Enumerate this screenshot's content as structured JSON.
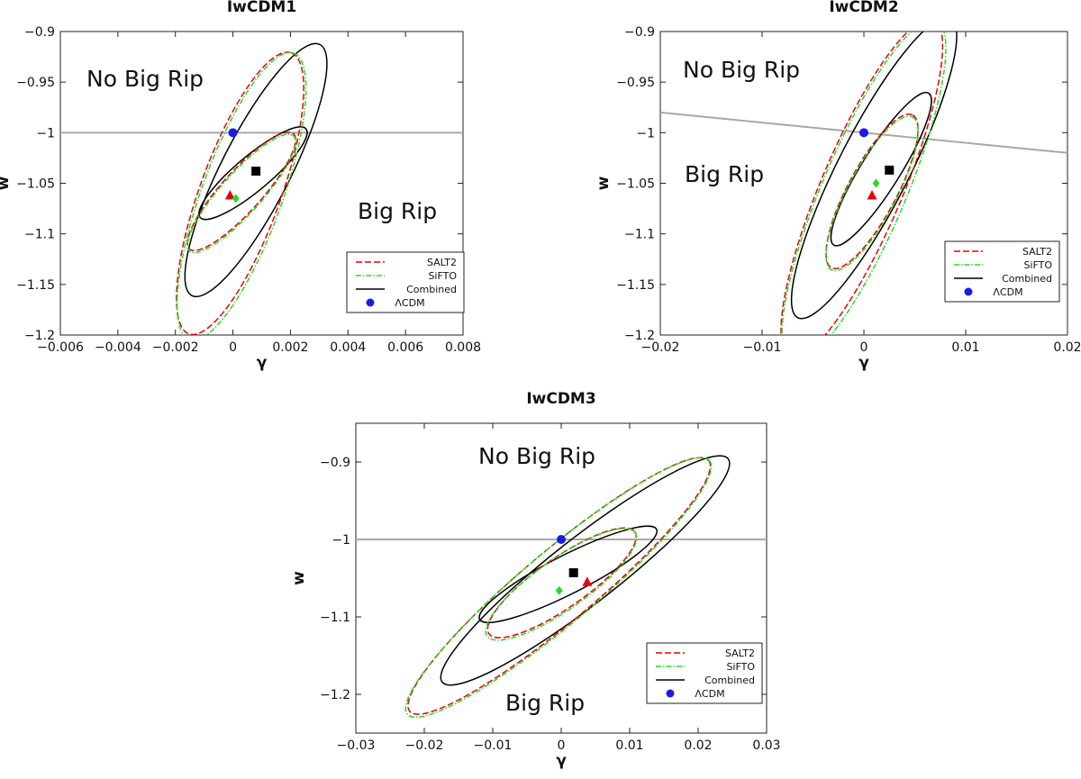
{
  "colors": {
    "salt2": "#e8000b",
    "sifto": "#22dd22",
    "combined": "#000000",
    "lcdm": "#1c1ce0",
    "refline": "#a8a8a8"
  },
  "chart_data": [
    {
      "type": "scatter",
      "id": "p1",
      "title": "IwCDM1",
      "xlabel": "γ",
      "ylabel": "w",
      "xlim": [
        -0.006,
        0.008
      ],
      "ylim": [
        -1.2,
        -0.9
      ],
      "xticks": [
        -0.006,
        -0.004,
        -0.002,
        0,
        0.002,
        0.004,
        0.006,
        0.008
      ],
      "xtick_labels": [
        "−0.006",
        "−0.004",
        "−0.002",
        "0",
        "0.002",
        "0.004",
        "0.006",
        "0.008"
      ],
      "yticks": [
        -1.2,
        -1.15,
        -1.1,
        -1.05,
        -1,
        -0.95,
        -0.9
      ],
      "ytick_labels": [
        "−1.2",
        "−1.15",
        "−1.1",
        "−1.05",
        "−1",
        "−0.95",
        "−0.9"
      ],
      "regions": [
        "No Big Rip",
        "Big Rip"
      ],
      "reference_line": {
        "points": [
          [
            -0.006,
            -1.0
          ],
          [
            0.008,
            -1.0
          ]
        ]
      },
      "contours": [
        {
          "series": "Combined",
          "level": "outer",
          "center": [
            0.0008,
            -1.037
          ],
          "a": 0.0049,
          "b": 0.0012,
          "angle": 63
        },
        {
          "series": "Combined",
          "level": "inner",
          "center": [
            0.0007,
            -1.04
          ],
          "a": 0.0024,
          "b": 0.0006,
          "angle": 40
        },
        {
          "series": "SALT2",
          "level": "outer",
          "center": [
            0.00025,
            -1.06
          ],
          "a": 0.0052,
          "b": 0.0014,
          "angle": 70
        },
        {
          "series": "SALT2",
          "level": "inner",
          "center": [
            0.0003,
            -1.058
          ],
          "a": 0.0027,
          "b": 0.0007,
          "angle": 48
        },
        {
          "series": "SiFTO",
          "level": "outer",
          "center": [
            0.0003,
            -1.063
          ],
          "a": 0.0053,
          "b": 0.0014,
          "angle": 70
        },
        {
          "series": "SiFTO",
          "level": "inner",
          "center": [
            0.0003,
            -1.06
          ],
          "a": 0.0027,
          "b": 0.0007,
          "angle": 48
        }
      ],
      "best_fits": [
        {
          "series": "Combined",
          "marker": "square",
          "x": 0.0008,
          "y": -1.038
        },
        {
          "series": "SALT2",
          "marker": "triangle",
          "x": -0.0001,
          "y": -1.062
        },
        {
          "series": "SiFTO",
          "marker": "diamond",
          "x": 0.0001,
          "y": -1.065
        },
        {
          "series": "ΛCDM",
          "marker": "circle",
          "x": 0.0,
          "y": -1.0
        }
      ],
      "legend": {
        "position": "bottom-right",
        "entries": [
          "SALT2",
          "SiFTO",
          "Combined",
          "ΛCDM"
        ]
      }
    },
    {
      "type": "scatter",
      "id": "p2",
      "title": "IwCDM2",
      "xlabel": "γ",
      "ylabel": "w",
      "xlim": [
        -0.02,
        0.02
      ],
      "ylim": [
        -1.2,
        -0.9
      ],
      "xticks": [
        -0.02,
        -0.01,
        0,
        0.01,
        0.02
      ],
      "xtick_labels": [
        "−0.02",
        "−0.01",
        "0",
        "0.01",
        "0.02"
      ],
      "yticks": [
        -1.2,
        -1.15,
        -1.1,
        -1.05,
        -1,
        -0.95,
        -0.9
      ],
      "ytick_labels": [
        "−1.2",
        "−1.15",
        "−1.1",
        "−1.05",
        "−1",
        "−0.95",
        "−0.9"
      ],
      "regions": [
        "No Big Rip",
        "Big Rip"
      ],
      "reference_line": {
        "points": [
          [
            -0.02,
            -0.98
          ],
          [
            0.02,
            -1.02
          ]
        ]
      },
      "contours": [
        {
          "series": "Combined",
          "level": "outer",
          "center": [
            0.001,
            -1.035
          ],
          "a": 0.0165,
          "b": 0.0035,
          "angle": 63
        },
        {
          "series": "Combined",
          "level": "inner",
          "center": [
            0.0017,
            -1.036
          ],
          "a": 0.0088,
          "b": 0.0019,
          "angle": 58
        },
        {
          "series": "SALT2",
          "level": "outer",
          "center": [
            -0.0002,
            -1.055
          ],
          "a": 0.018,
          "b": 0.004,
          "angle": 67
        },
        {
          "series": "SALT2",
          "level": "inner",
          "center": [
            0.0008,
            -1.058
          ],
          "a": 0.0085,
          "b": 0.0024,
          "angle": 62
        },
        {
          "series": "SiFTO",
          "level": "outer",
          "center": [
            0.0,
            -1.058
          ],
          "a": 0.0182,
          "b": 0.0041,
          "angle": 67
        },
        {
          "series": "SiFTO",
          "level": "inner",
          "center": [
            0.0008,
            -1.06
          ],
          "a": 0.0085,
          "b": 0.0024,
          "angle": 62
        }
      ],
      "best_fits": [
        {
          "series": "Combined",
          "marker": "square",
          "x": 0.0025,
          "y": -1.037
        },
        {
          "series": "SALT2",
          "marker": "triangle",
          "x": 0.0008,
          "y": -1.062
        },
        {
          "series": "SiFTO",
          "marker": "diamond",
          "x": 0.0012,
          "y": -1.05
        },
        {
          "series": "ΛCDM",
          "marker": "circle",
          "x": 0.0,
          "y": -1.0
        }
      ],
      "legend": {
        "position": "bottom-right",
        "entries": [
          "SALT2",
          "SiFTO",
          "Combined",
          "ΛCDM"
        ]
      }
    },
    {
      "type": "scatter",
      "id": "p3",
      "title": "IwCDM3",
      "xlabel": "γ",
      "ylabel": "w",
      "xlim": [
        -0.03,
        0.03
      ],
      "ylim": [
        -1.25,
        -0.85
      ],
      "xticks": [
        -0.03,
        -0.02,
        -0.01,
        0,
        0.01,
        0.02,
        0.03
      ],
      "xtick_labels": [
        "−0.03",
        "−0.02",
        "−0.01",
        "0",
        "0.01",
        "0.02",
        "0.03"
      ],
      "yticks": [
        -1.2,
        -1.1,
        -1,
        -0.9
      ],
      "ytick_labels": [
        "−1.2",
        "−1.1",
        "−1",
        "−0.9"
      ],
      "regions": [
        "No Big Rip",
        "Big Rip"
      ],
      "reference_line": {
        "points": [
          [
            -0.03,
            -1.0
          ],
          [
            0.03,
            -1.0
          ]
        ]
      },
      "contours": [
        {
          "series": "Combined",
          "level": "outer",
          "center": [
            0.0035,
            -1.04
          ],
          "a": 0.0265,
          "b": 0.0048,
          "angle": 38
        },
        {
          "series": "Combined",
          "level": "inner",
          "center": [
            0.001,
            -1.045
          ],
          "a": 0.0145,
          "b": 0.0028,
          "angle": 27
        },
        {
          "series": "SALT2",
          "level": "outer",
          "center": [
            -0.0003,
            -1.06
          ],
          "a": 0.0285,
          "b": 0.0052,
          "angle": 40
        },
        {
          "series": "SALT2",
          "level": "inner",
          "center": [
            0.0001,
            -1.056
          ],
          "a": 0.013,
          "b": 0.0036,
          "angle": 35
        },
        {
          "series": "SiFTO",
          "level": "outer",
          "center": [
            -0.0004,
            -1.062
          ],
          "a": 0.0288,
          "b": 0.0053,
          "angle": 40
        },
        {
          "series": "SiFTO",
          "level": "inner",
          "center": [
            0.0,
            -1.058
          ],
          "a": 0.0132,
          "b": 0.0037,
          "angle": 35
        }
      ],
      "best_fits": [
        {
          "series": "Combined",
          "marker": "square",
          "x": 0.0018,
          "y": -1.043
        },
        {
          "series": "SALT2",
          "marker": "triangle",
          "x": 0.0038,
          "y": -1.055
        },
        {
          "series": "SiFTO",
          "marker": "diamond",
          "x": -0.0003,
          "y": -1.066
        },
        {
          "series": "ΛCDM",
          "marker": "circle",
          "x": 0.0,
          "y": -1.0
        }
      ],
      "legend": {
        "position": "bottom-right",
        "entries": [
          "SALT2",
          "SiFTO",
          "Combined",
          "ΛCDM"
        ]
      }
    }
  ]
}
